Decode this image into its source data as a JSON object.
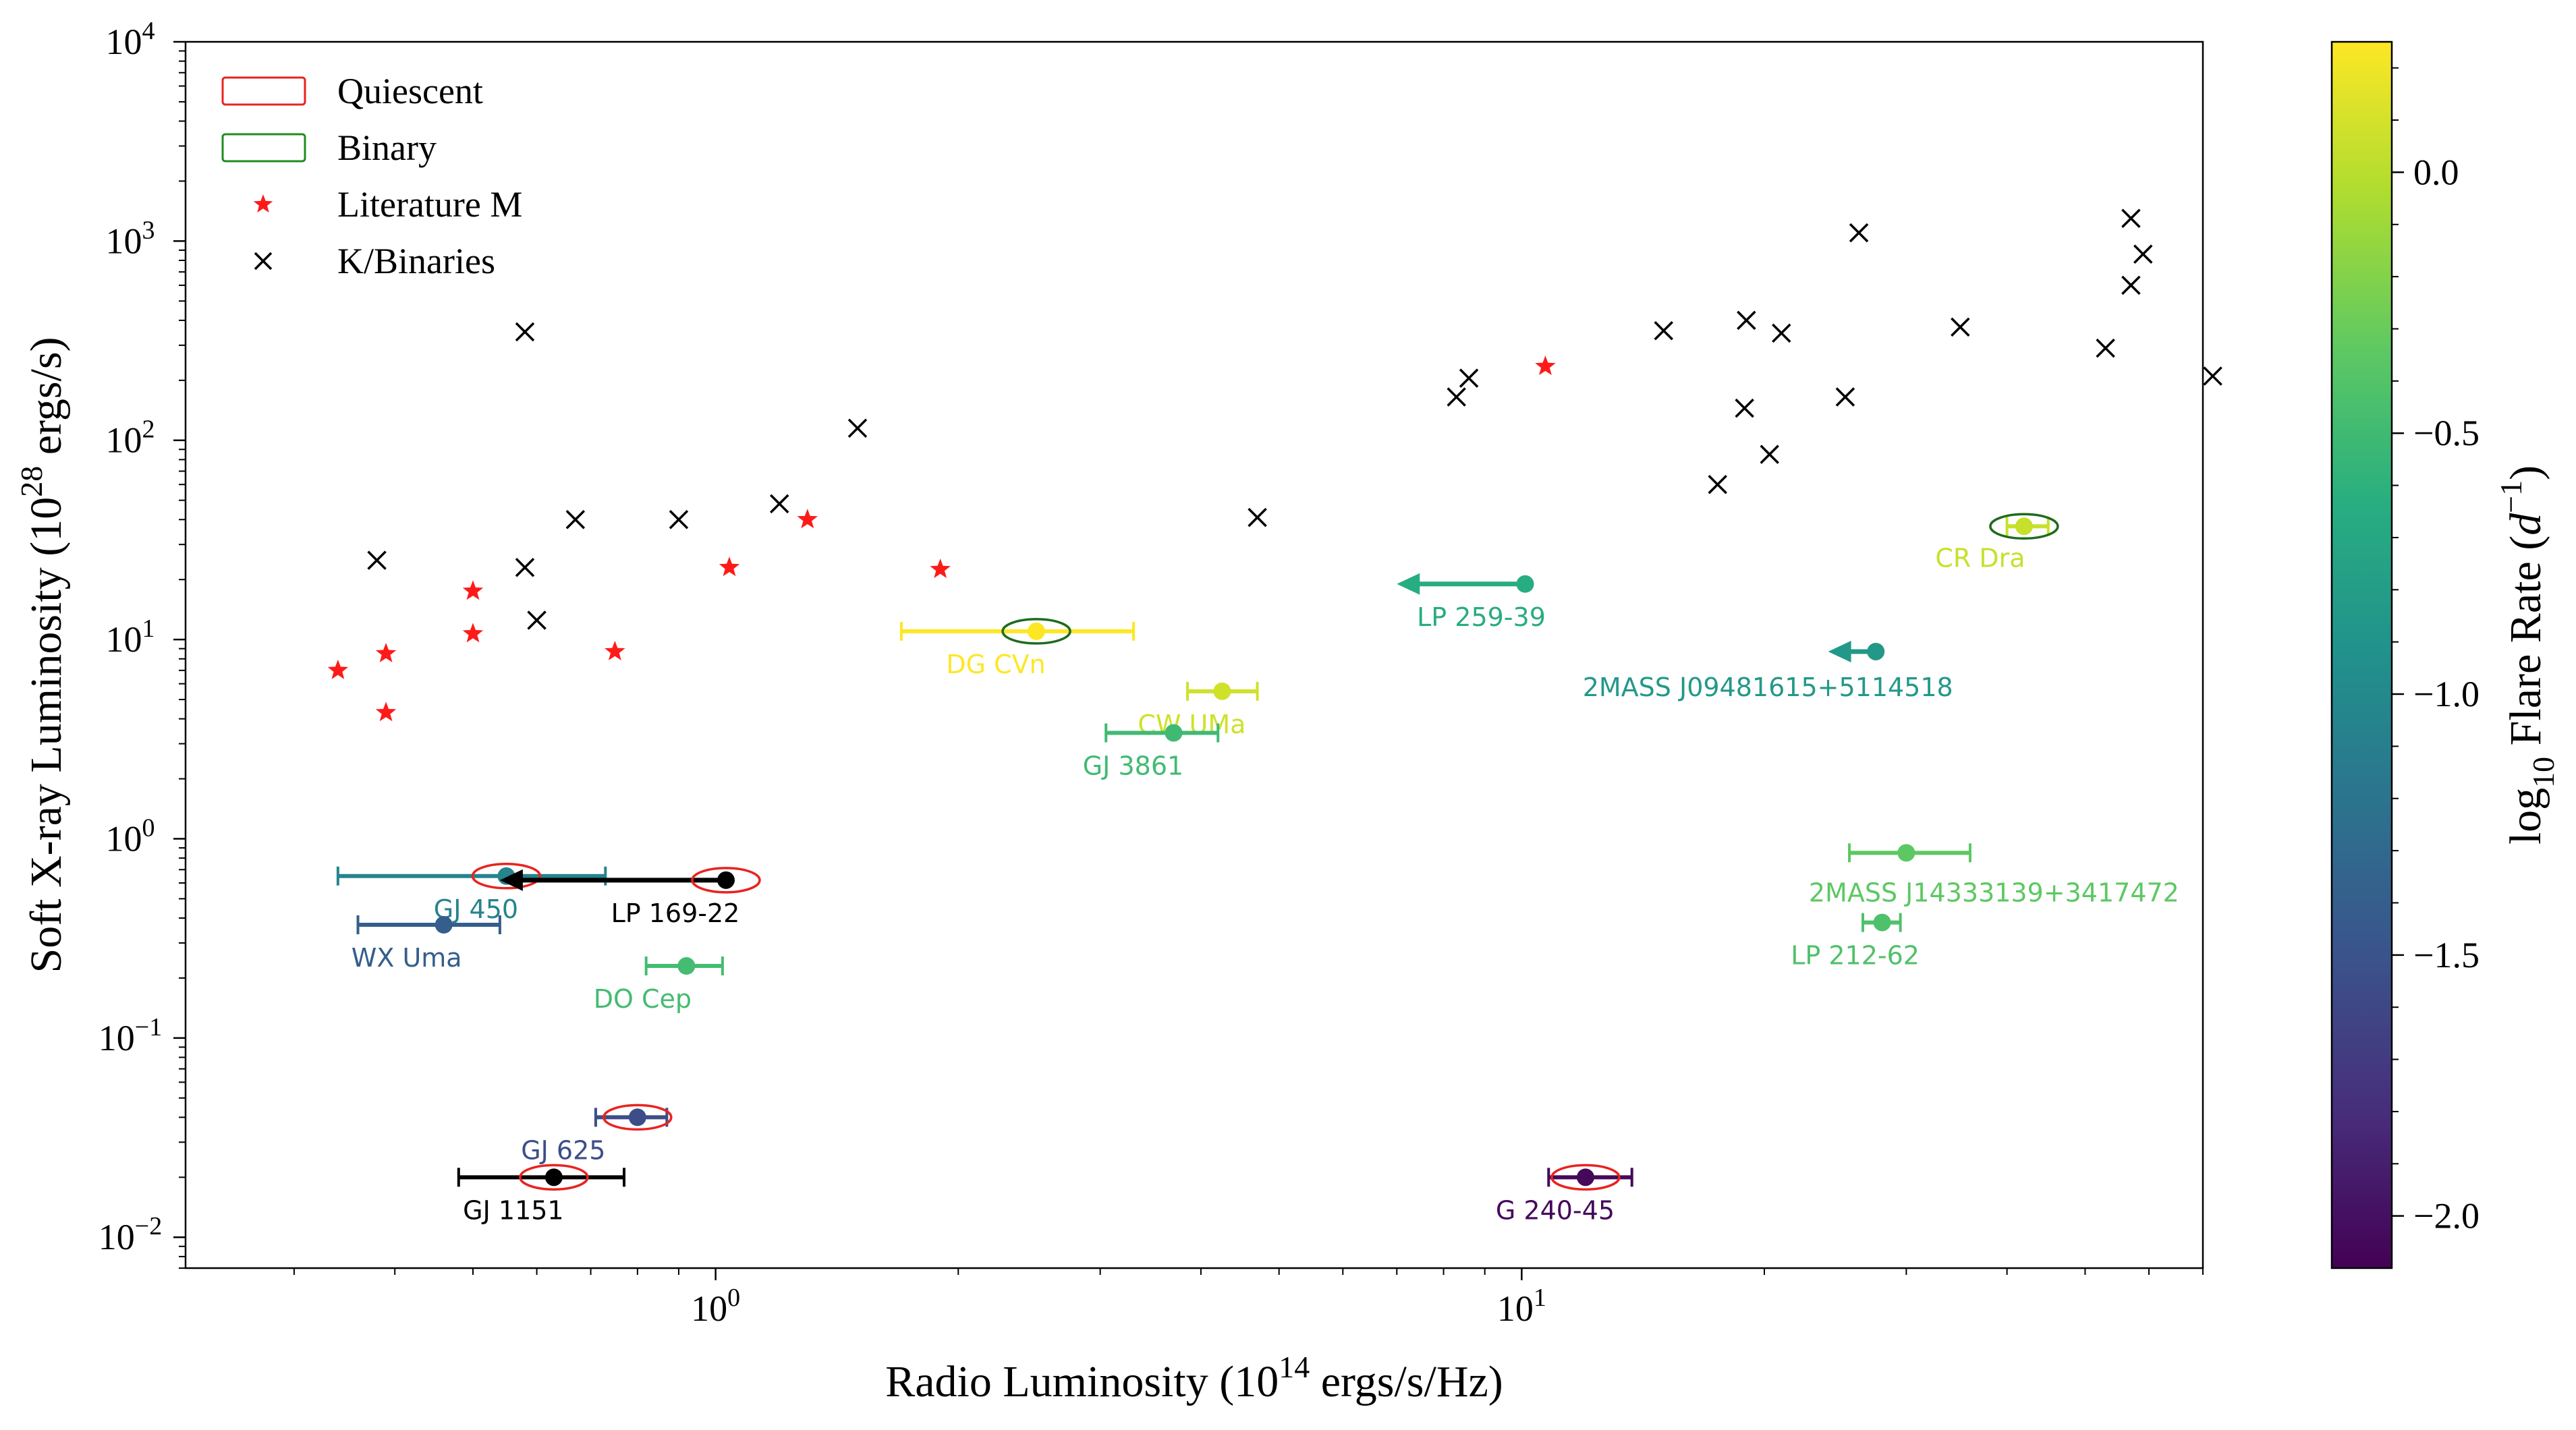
{
  "chart_data": {
    "type": "scatter",
    "xlabel_prefix": "Radio Luminosity (",
    "xlabel_power": "10",
    "xlabel_exp": "14",
    "xlabel_suffix": " ergs/s/Hz)",
    "ylabel_prefix": "Soft X-ray Luminosity (",
    "ylabel_power": "10",
    "ylabel_exp": "28",
    "ylabel_suffix": " ergs/s)",
    "x_scale": "log",
    "y_scale": "log",
    "xlim": [
      0.22,
      70
    ],
    "ylim": [
      0.007,
      10000
    ],
    "x_ticks": [
      {
        "value": 1,
        "label": "10",
        "exp": "0"
      },
      {
        "value": 10,
        "label": "10",
        "exp": "1"
      }
    ],
    "y_ticks": [
      {
        "value": 0.01,
        "label": "10",
        "exp": "−2"
      },
      {
        "value": 0.1,
        "label": "10",
        "exp": "−1"
      },
      {
        "value": 1,
        "label": "10",
        "exp": "0"
      },
      {
        "value": 10,
        "label": "10",
        "exp": "1"
      },
      {
        "value": 100,
        "label": "10",
        "exp": "2"
      },
      {
        "value": 1000,
        "label": "10",
        "exp": "3"
      },
      {
        "value": 10000,
        "label": "10",
        "exp": "4"
      }
    ],
    "grid": false,
    "legend": {
      "placement": "top-left",
      "entries": [
        {
          "label": "Quiescent",
          "marker": "ellipse-outline",
          "color": "#e8231f"
        },
        {
          "label": "Binary",
          "marker": "ellipse-outline",
          "color": "#1e8c1e"
        },
        {
          "label": "Literature M",
          "marker": "star",
          "color": "#ff1a1a"
        },
        {
          "label": "K/Binaries",
          "marker": "x",
          "color": "#000000"
        }
      ]
    },
    "colorbar": {
      "label_prefix": "log",
      "label_sub": "10",
      "label_mid": " Flare Rate (",
      "label_var": "d",
      "label_exp": "−1",
      "label_suffix": ")",
      "colormap": "viridis",
      "range": [
        -2.1,
        0.25
      ],
      "ticks": [
        {
          "value": 0.0,
          "label": "0.0"
        },
        {
          "value": -0.5,
          "label": "−0.5"
        },
        {
          "value": -1.0,
          "label": "−1.0"
        },
        {
          "value": -1.5,
          "label": "−1.5"
        },
        {
          "value": -2.0,
          "label": "−2.0"
        }
      ]
    },
    "literature_m": [
      {
        "x": 0.34,
        "y": 7.0
      },
      {
        "x": 0.39,
        "y": 8.5
      },
      {
        "x": 0.39,
        "y": 4.3
      },
      {
        "x": 0.5,
        "y": 17.5
      },
      {
        "x": 0.5,
        "y": 10.7
      },
      {
        "x": 0.75,
        "y": 8.7
      },
      {
        "x": 1.04,
        "y": 23
      },
      {
        "x": 1.3,
        "y": 40
      },
      {
        "x": 1.9,
        "y": 22.5
      },
      {
        "x": 10.7,
        "y": 235
      }
    ],
    "k_binaries": [
      {
        "x": 0.38,
        "y": 25
      },
      {
        "x": 0.58,
        "y": 350
      },
      {
        "x": 0.58,
        "y": 23
      },
      {
        "x": 0.6,
        "y": 12.5
      },
      {
        "x": 0.67,
        "y": 40
      },
      {
        "x": 0.9,
        "y": 40
      },
      {
        "x": 1.2,
        "y": 48
      },
      {
        "x": 1.5,
        "y": 115
      },
      {
        "x": 4.7,
        "y": 41
      },
      {
        "x": 8.3,
        "y": 165
      },
      {
        "x": 8.6,
        "y": 205
      },
      {
        "x": 15,
        "y": 355
      },
      {
        "x": 17.5,
        "y": 60
      },
      {
        "x": 18.9,
        "y": 145
      },
      {
        "x": 19,
        "y": 400
      },
      {
        "x": 20.3,
        "y": 85
      },
      {
        "x": 21,
        "y": 345
      },
      {
        "x": 25.2,
        "y": 165
      },
      {
        "x": 26.2,
        "y": 1100
      },
      {
        "x": 35,
        "y": 370
      },
      {
        "x": 53,
        "y": 290
      },
      {
        "x": 57,
        "y": 1300
      },
      {
        "x": 57,
        "y": 600
      },
      {
        "x": 59,
        "y": 860
      },
      {
        "x": 72,
        "y": 210
      }
    ],
    "targets": [
      {
        "name": "DG CVn",
        "x": 2.5,
        "y": 11,
        "xerr": [
          1.7,
          3.3
        ],
        "flare_rate": 0.25,
        "binary": true
      },
      {
        "name": "CW UMa",
        "x": 4.25,
        "y": 5.5,
        "xerr": [
          3.85,
          4.7
        ],
        "flare_rate": 0.08
      },
      {
        "name": "GJ 3861",
        "x": 3.7,
        "y": 3.4,
        "xerr": [
          3.05,
          4.2
        ],
        "flare_rate": -0.5
      },
      {
        "name": "LP 259-39",
        "x": 10.1,
        "y": 19,
        "upper_limit": true,
        "flare_rate": -0.65
      },
      {
        "name": "2MASS J09481615+5114518",
        "x": 27.5,
        "y": 8.7,
        "upper_limit": true,
        "flare_rate": -0.85
      },
      {
        "name": "CR Dra",
        "x": 42,
        "y": 37,
        "xerr": [
          40,
          45
        ],
        "flare_rate": 0.05,
        "binary": true
      },
      {
        "name": "2MASS J14333139+3417472",
        "x": 30,
        "y": 0.85,
        "xerr": [
          25.5,
          36
        ],
        "flare_rate": -0.35
      },
      {
        "name": "LP 212-62",
        "x": 28,
        "y": 0.38,
        "xerr": [
          26.5,
          29.5
        ],
        "flare_rate": -0.42
      },
      {
        "name": "GJ 450",
        "x": 0.55,
        "y": 0.65,
        "xerr": [
          0.34,
          0.73
        ],
        "flare_rate": -1.05,
        "quiescent": true
      },
      {
        "name": "LP 169-22",
        "x": 1.03,
        "y": 0.62,
        "upper_limit": true,
        "flare_rate": null,
        "quiescent": true
      },
      {
        "name": "WX Uma",
        "x": 0.46,
        "y": 0.37,
        "xerr": [
          0.36,
          0.54
        ],
        "flare_rate": -1.4
      },
      {
        "name": "DO Cep",
        "x": 0.92,
        "y": 0.23,
        "xerr": [
          0.82,
          1.02
        ],
        "flare_rate": -0.48
      },
      {
        "name": "GJ 625",
        "x": 0.8,
        "y": 0.04,
        "xerr": [
          0.71,
          0.87
        ],
        "flare_rate": -1.55,
        "quiescent": true
      },
      {
        "name": "GJ 1151",
        "x": 0.63,
        "y": 0.02,
        "xerr": [
          0.48,
          0.77
        ],
        "flare_rate": null,
        "quiescent": true
      },
      {
        "name": "G 240-45",
        "x": 12,
        "y": 0.02,
        "xerr": [
          10.8,
          13.7
        ],
        "flare_rate": -2.05,
        "quiescent": true
      }
    ]
  }
}
